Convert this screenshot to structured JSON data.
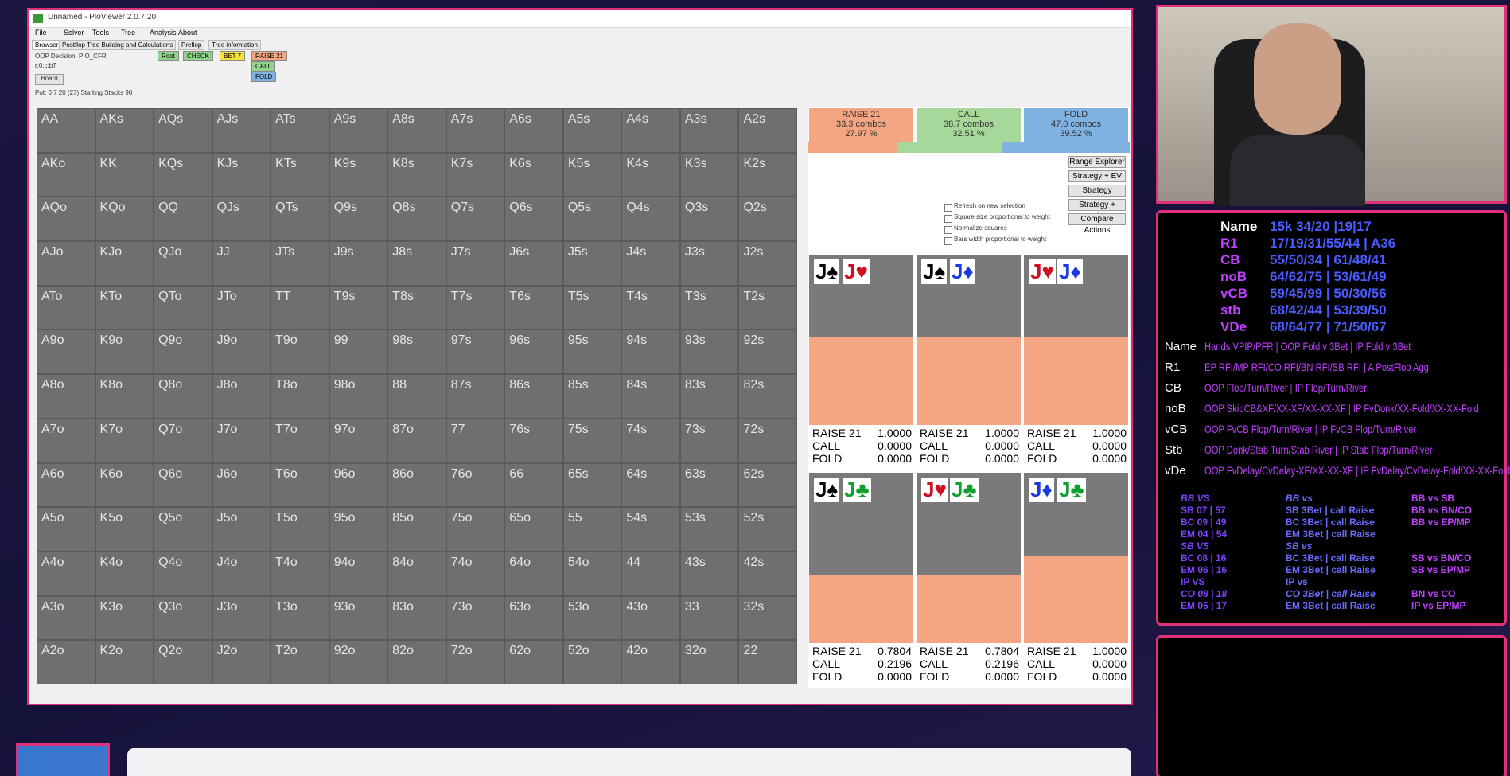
{
  "window": {
    "title": "Unnamed - PioViewer 2.0.7.20",
    "menu": [
      "File",
      "Solver",
      "Tools",
      "Tree",
      "Analysis",
      "About"
    ],
    "tabs": [
      "Browser",
      "Postflop Tree Building and Calculations",
      "Preflop",
      "Tree information"
    ],
    "info": [
      "OOP Decision: PIO_CFR",
      "r:0:c:b7",
      "Pot: 0 7 20 (27) Starting Stacks 90"
    ],
    "board_button": "Board",
    "nav": [
      {
        "text": "Root",
        "color": "#8fd48a"
      },
      {
        "text": "CHECK",
        "color": "#8fd48a"
      },
      {
        "text": "BET 7",
        "color": "#f5e23a"
      },
      {
        "text": "RAISE 21",
        "color": "#f4a582"
      },
      {
        "text": "CALL",
        "color": "#8fd48a"
      },
      {
        "text": "FOLD",
        "color": "#7fb2e0"
      }
    ]
  },
  "grid": {
    "rows": [
      [
        "AA",
        "AKs",
        "AQs",
        "AJs",
        "ATs",
        "A9s",
        "A8s",
        "A7s",
        "A6s",
        "A5s",
        "A4s",
        "A3s",
        "A2s"
      ],
      [
        "AKo",
        "KK",
        "KQs",
        "KJs",
        "KTs",
        "K9s",
        "K8s",
        "K7s",
        "K6s",
        "K5s",
        "K4s",
        "K3s",
        "K2s"
      ],
      [
        "AQo",
        "KQo",
        "QQ",
        "QJs",
        "QTs",
        "Q9s",
        "Q8s",
        "Q7s",
        "Q6s",
        "Q5s",
        "Q4s",
        "Q3s",
        "Q2s"
      ],
      [
        "AJo",
        "KJo",
        "QJo",
        "JJ",
        "JTs",
        "J9s",
        "J8s",
        "J7s",
        "J6s",
        "J5s",
        "J4s",
        "J3s",
        "J2s"
      ],
      [
        "ATo",
        "KTo",
        "QTo",
        "JTo",
        "TT",
        "T9s",
        "T8s",
        "T7s",
        "T6s",
        "T5s",
        "T4s",
        "T3s",
        "T2s"
      ],
      [
        "A9o",
        "K9o",
        "Q9o",
        "J9o",
        "T9o",
        "99",
        "98s",
        "97s",
        "96s",
        "95s",
        "94s",
        "93s",
        "92s"
      ],
      [
        "A8o",
        "K8o",
        "Q8o",
        "J8o",
        "T8o",
        "98o",
        "88",
        "87s",
        "86s",
        "85s",
        "84s",
        "83s",
        "82s"
      ],
      [
        "A7o",
        "K7o",
        "Q7o",
        "J7o",
        "T7o",
        "97o",
        "87o",
        "77",
        "76s",
        "75s",
        "74s",
        "73s",
        "72s"
      ],
      [
        "A6o",
        "K6o",
        "Q6o",
        "J6o",
        "T6o",
        "96o",
        "86o",
        "76o",
        "66",
        "65s",
        "64s",
        "63s",
        "62s"
      ],
      [
        "A5o",
        "K5o",
        "Q5o",
        "J5o",
        "T5o",
        "95o",
        "85o",
        "75o",
        "65o",
        "55",
        "54s",
        "53s",
        "52s"
      ],
      [
        "A4o",
        "K4o",
        "Q4o",
        "J4o",
        "T4o",
        "94o",
        "84o",
        "74o",
        "64o",
        "54o",
        "44",
        "43s",
        "42s"
      ],
      [
        "A3o",
        "K3o",
        "Q3o",
        "J3o",
        "T3o",
        "93o",
        "83o",
        "73o",
        "63o",
        "53o",
        "43o",
        "33",
        "32s"
      ],
      [
        "A2o",
        "K2o",
        "Q2o",
        "J2o",
        "T2o",
        "92o",
        "82o",
        "72o",
        "62o",
        "52o",
        "42o",
        "32o",
        "22"
      ]
    ]
  },
  "strategy": {
    "actions": [
      {
        "name": "RAISE 21",
        "combos": {
          "value": 33.3,
          "label": "33.3 combos"
        },
        "percent": {
          "value": 27.97,
          "label": "27.97 %"
        },
        "color": "#f4a582"
      },
      {
        "name": "CALL",
        "combos": {
          "value": 38.7,
          "label": "38.7 combos"
        },
        "percent": {
          "value": 32.51,
          "label": "32.51 %"
        },
        "color": "#a6d89a"
      },
      {
        "name": "FOLD",
        "combos": {
          "value": 47.0,
          "label": "47.0 combos"
        },
        "percent": {
          "value": 39.52,
          "label": "39.52 %"
        },
        "color": "#7fb2e0"
      }
    ],
    "options": [
      "Refresh on new selection",
      "Square size proportional to weight",
      "Normalize squares",
      "Bars width proportional to weight"
    ],
    "buttons": [
      "Range Explorer",
      "Strategy + EV",
      "Strategy",
      "Strategy + Raise",
      "Compare Actions"
    ]
  },
  "combos": [
    {
      "cards": [
        "J♠",
        "J♥"
      ],
      "rows": [
        {
          "action": "RAISE 21",
          "value": 1.0,
          "label": "1.0000"
        },
        {
          "action": "CALL",
          "value": 0.0,
          "label": "0.0000"
        },
        {
          "action": "FOLD",
          "value": 0.0,
          "label": "0.0000"
        }
      ]
    },
    {
      "cards": [
        "J♠",
        "J♦"
      ],
      "rows": [
        {
          "action": "RAISE 21",
          "value": 1.0,
          "label": "1.0000"
        },
        {
          "action": "CALL",
          "value": 0.0,
          "label": "0.0000"
        },
        {
          "action": "FOLD",
          "value": 0.0,
          "label": "0.0000"
        }
      ]
    },
    {
      "cards": [
        "J♥",
        "J♦"
      ],
      "rows": [
        {
          "action": "RAISE 21",
          "value": 1.0,
          "label": "1.0000"
        },
        {
          "action": "CALL",
          "value": 0.0,
          "label": "0.0000"
        },
        {
          "action": "FOLD",
          "value": 0.0,
          "label": "0.0000"
        }
      ]
    },
    {
      "cards": [
        "J♠",
        "J♣"
      ],
      "rows": [
        {
          "action": "RAISE 21",
          "value": 0.7804,
          "label": "0.7804"
        },
        {
          "action": "CALL",
          "value": 0.2196,
          "label": "0.2196"
        },
        {
          "action": "FOLD",
          "value": 0.0,
          "label": "0.0000"
        }
      ]
    },
    {
      "cards": [
        "J♥",
        "J♣"
      ],
      "rows": [
        {
          "action": "RAISE 21",
          "value": 0.7804,
          "label": "0.7804"
        },
        {
          "action": "CALL",
          "value": 0.2196,
          "label": "0.2196"
        },
        {
          "action": "FOLD",
          "value": 0.0,
          "label": "0.0000"
        }
      ]
    },
    {
      "cards": [
        "J♦",
        "J♣"
      ],
      "rows": [
        {
          "action": "RAISE 21",
          "value": 1.0,
          "label": "1.0000"
        },
        {
          "action": "CALL",
          "value": 0.0,
          "label": "0.0000"
        },
        {
          "action": "FOLD",
          "value": 0.0,
          "label": "0.0000"
        }
      ]
    }
  ],
  "hud": {
    "stats": [
      {
        "label": "Name",
        "values": "15k 34/20 |19|17",
        "color": "#ffffff"
      },
      {
        "label": "R1",
        "values": "17/19/31/55/44 | A36",
        "color": "#c040ff"
      },
      {
        "label": "CB",
        "values": "55/50/34 | 61/48/41",
        "color": "#c040ff"
      },
      {
        "label": "noB",
        "values": "64/62/75 | 53/61/49",
        "color": "#c040ff"
      },
      {
        "label": "vCB",
        "values": "59/45/99 | 50/30/56",
        "color": "#c040ff"
      },
      {
        "label": "stb",
        "values": "68/42/44 | 53/39/50",
        "color": "#c040ff"
      },
      {
        "label": "VDe",
        "values": "68/64/77 | 71/50/67",
        "color": "#c040ff"
      }
    ],
    "legend": [
      {
        "label": "Name",
        "text": "Hands  VPIP/PFR | OOP Fold v 3Bet | IP Fold v 3Bet"
      },
      {
        "label": "R1",
        "text": "EP RFI/MP RFI/CO RFI/BN RFI/SB RFI | A PostFlop Agg"
      },
      {
        "label": "CB",
        "text": "OOP Flop/Turn/River | IP Flop/Turn/River"
      },
      {
        "label": "noB",
        "text": "OOP SkipCB&XF/XX-XF/XX-XX-XF | IP FvDonk/XX-Fold/XX-XX-Fold"
      },
      {
        "label": "vCB",
        "text": "OOP FvCB Flop/Turn/River | IP FvCB Flop/Turn/River"
      },
      {
        "label": "Stb",
        "text": "OOP Donk/Stab Turn/Stab River | IP Stab Flop/Turn/River"
      },
      {
        "label": "vDe",
        "text": "OOP FvDelay/CvDelay-XF/XX-XX-XF | IP FvDelay/CvDelay-Fold/XX-XX-Fold"
      }
    ],
    "table": [
      [
        "BB VS",
        "SB 07 | 57",
        "BC 09 | 49",
        "EM 04 | 54",
        "SB VS",
        "BC 08 | 16",
        "EM 06 | 16",
        "IP VS",
        "CO 08 | 18",
        "EM 05 | 17"
      ],
      [
        "BB vs",
        "SB 3Bet | call Raise",
        "BC 3Bet | call Raise",
        "EM 3Bet | call Raise",
        "SB vs",
        "BC 3Bet | call Raise",
        "EM 3Bet | call Raise",
        "IP vs",
        "CO 3Bet | call Raise",
        "EM 3Bet | call Raise"
      ],
      [
        "BB vs SB",
        "BB vs BN/CO",
        "BB vs EP/MP",
        "",
        "",
        "SB vs BN/CO",
        "SB vs EP/MP",
        "",
        "BN vs CO",
        "IP vs EP/MP"
      ]
    ]
  }
}
